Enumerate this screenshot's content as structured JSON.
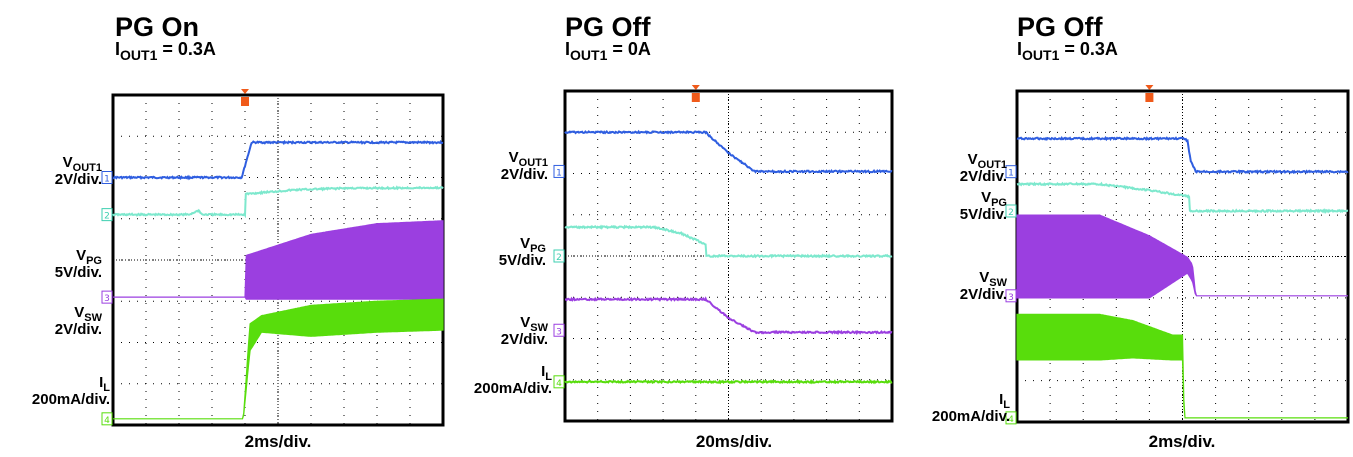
{
  "chart_data": [
    {
      "type": "line",
      "title": "PG On",
      "subtitle_main": "I",
      "subtitle_sub": "OUT1",
      "subtitle_tail": " = 0.3A",
      "timebase": "2ms/div.",
      "xlim": [
        0,
        10
      ],
      "ylim": [
        -4,
        4
      ],
      "trigger_x": 4,
      "labels": {
        "vout": {
          "main": "V",
          "sub": "OUT1",
          "scale": "2V/div."
        },
        "vpg": {
          "main": "V",
          "sub": "PG",
          "scale": "5V/div."
        },
        "vsw": {
          "main": "V",
          "sub": "SW",
          "scale": "2V/div."
        },
        "il": {
          "main": "I",
          "sub": "L",
          "scale": "200mA/div."
        }
      },
      "ground_markers": [
        {
          "label": "1",
          "y": 2.0,
          "color": "#2f5ee0"
        },
        {
          "label": "2",
          "y": 1.1,
          "color": "#3ecfb0"
        },
        {
          "label": "3",
          "y": -0.9,
          "color": "#9b3fe0"
        },
        {
          "label": "4",
          "y": -3.85,
          "color": "#58dd0c"
        }
      ],
      "series": [
        {
          "channel": "1",
          "color": "#2f5ee0",
          "band": false,
          "x": [
            0,
            3.9,
            4.2,
            10
          ],
          "y": [
            2.0,
            2.0,
            2.85,
            2.85
          ]
        },
        {
          "channel": "2",
          "color": "#7de8cd",
          "band": false,
          "x": [
            0,
            2.3,
            2.6,
            2.7,
            4.0,
            4.0,
            5.5,
            7.0,
            10
          ],
          "y": [
            1.1,
            1.1,
            1.2,
            1.1,
            1.1,
            1.6,
            1.7,
            1.74,
            1.75
          ]
        },
        {
          "channel": "3",
          "color": "#9b3fe0",
          "band": true,
          "x": [
            0,
            4.0,
            4.0,
            6.0,
            8.0,
            10
          ],
          "lo": [
            -0.9,
            -0.9,
            -0.95,
            -0.95,
            -0.95,
            -0.95
          ],
          "hi": [
            -0.9,
            -0.9,
            0.1,
            0.62,
            0.88,
            0.95
          ]
        },
        {
          "channel": "4",
          "color": "#58dd0c",
          "band": true,
          "x": [
            0,
            3.95,
            4.15,
            4.5,
            6.0,
            8.0,
            10
          ],
          "lo": [
            -3.85,
            -3.85,
            -2.2,
            -1.75,
            -1.85,
            -1.75,
            -1.7
          ],
          "hi": [
            -3.85,
            -3.85,
            -1.55,
            -1.35,
            -1.1,
            -1.0,
            -0.95
          ]
        }
      ]
    },
    {
      "type": "line",
      "title": "PG Off",
      "subtitle_main": "I",
      "subtitle_sub": "OUT1",
      "subtitle_tail": " = 0A",
      "timebase": "20ms/div.",
      "xlim": [
        0,
        10
      ],
      "ylim": [
        -4,
        4
      ],
      "trigger_x": 4,
      "labels": {
        "vout": {
          "main": "V",
          "sub": "OUT1",
          "scale": "2V/div."
        },
        "vpg": {
          "main": "V",
          "sub": "PG",
          "scale": "5V/div."
        },
        "vsw": {
          "main": "V",
          "sub": "SW",
          "scale": "2V/div."
        },
        "il": {
          "main": "I",
          "sub": "L",
          "scale": "200mA/div."
        }
      },
      "ground_markers": [
        {
          "label": "1",
          "y": 2.05,
          "color": "#2f5ee0"
        },
        {
          "label": "2",
          "y": 0.0,
          "color": "#3ecfb0"
        },
        {
          "label": "3",
          "y": -1.8,
          "color": "#9b3fe0"
        },
        {
          "label": "4",
          "y": -3.05,
          "color": "#58dd0c"
        }
      ],
      "series": [
        {
          "channel": "1",
          "color": "#2f5ee0",
          "band": false,
          "x": [
            0,
            4.3,
            5.0,
            5.8,
            10
          ],
          "y": [
            3.0,
            3.0,
            2.5,
            2.05,
            2.05
          ]
        },
        {
          "channel": "2",
          "color": "#7de8cd",
          "band": false,
          "x": [
            0,
            2.7,
            3.55,
            4.3,
            4.3,
            10
          ],
          "y": [
            0.7,
            0.7,
            0.55,
            0.28,
            0.0,
            0.0
          ]
        },
        {
          "channel": "3",
          "color": "#9b3fe0",
          "band": false,
          "x": [
            0,
            4.3,
            5.0,
            5.8,
            10
          ],
          "y": [
            -1.05,
            -1.05,
            -1.5,
            -1.85,
            -1.85
          ]
        },
        {
          "channel": "4",
          "color": "#58dd0c",
          "band": false,
          "x": [
            0,
            10
          ],
          "y": [
            -3.05,
            -3.05
          ]
        }
      ]
    },
    {
      "type": "line",
      "title": "PG Off",
      "subtitle_main": "I",
      "subtitle_sub": "OUT1",
      "subtitle_tail": " = 0.3A",
      "timebase": "2ms/div.",
      "xlim": [
        0,
        10
      ],
      "ylim": [
        -4,
        4
      ],
      "trigger_x": 4,
      "labels": {
        "vout": {
          "main": "V",
          "sub": "OUT1",
          "scale": "2V/div."
        },
        "vpg": {
          "main": "V",
          "sub": "PG",
          "scale": "5V/div."
        },
        "vsw": {
          "main": "V",
          "sub": "SW",
          "scale": "2V/div."
        },
        "il": {
          "main": "I",
          "sub": "L",
          "scale": "200mA/div."
        }
      },
      "ground_markers": [
        {
          "label": "1",
          "y": 2.05,
          "color": "#2f5ee0"
        },
        {
          "label": "2",
          "y": 1.1,
          "color": "#3ecfb0"
        },
        {
          "label": "3",
          "y": -0.95,
          "color": "#9b3fe0"
        },
        {
          "label": "4",
          "y": -3.9,
          "color": "#58dd0c"
        }
      ],
      "series": [
        {
          "channel": "1",
          "color": "#2f5ee0",
          "band": false,
          "x": [
            0,
            5.05,
            5.15,
            5.25,
            5.4,
            10
          ],
          "y": [
            2.85,
            2.85,
            2.8,
            2.3,
            2.05,
            2.05
          ]
        },
        {
          "channel": "2",
          "color": "#7de8cd",
          "band": false,
          "x": [
            0,
            2.5,
            4.0,
            5.2,
            5.2,
            10
          ],
          "y": [
            1.75,
            1.75,
            1.6,
            1.45,
            1.1,
            1.1
          ]
        },
        {
          "channel": "3",
          "color": "#9b3fe0",
          "band": true,
          "x": [
            0,
            2.5,
            4.0,
            5.15,
            5.3,
            5.4,
            10
          ],
          "lo": [
            -1.0,
            -1.0,
            -1.0,
            -0.4,
            -0.6,
            -0.95,
            -0.95
          ],
          "hi": [
            1.0,
            1.0,
            0.5,
            -0.02,
            -0.2,
            -0.95,
            -0.95
          ]
        },
        {
          "channel": "4",
          "color": "#58dd0c",
          "band": true,
          "x": [
            0,
            2.5,
            3.5,
            4.7,
            5.0,
            5.05,
            5.2,
            10
          ],
          "lo": [
            -2.5,
            -2.5,
            -2.45,
            -2.5,
            -2.5,
            -3.9,
            -3.9,
            -3.9
          ],
          "hi": [
            -1.4,
            -1.4,
            -1.55,
            -1.9,
            -1.9,
            -3.9,
            -3.9,
            -3.9
          ]
        }
      ]
    }
  ]
}
